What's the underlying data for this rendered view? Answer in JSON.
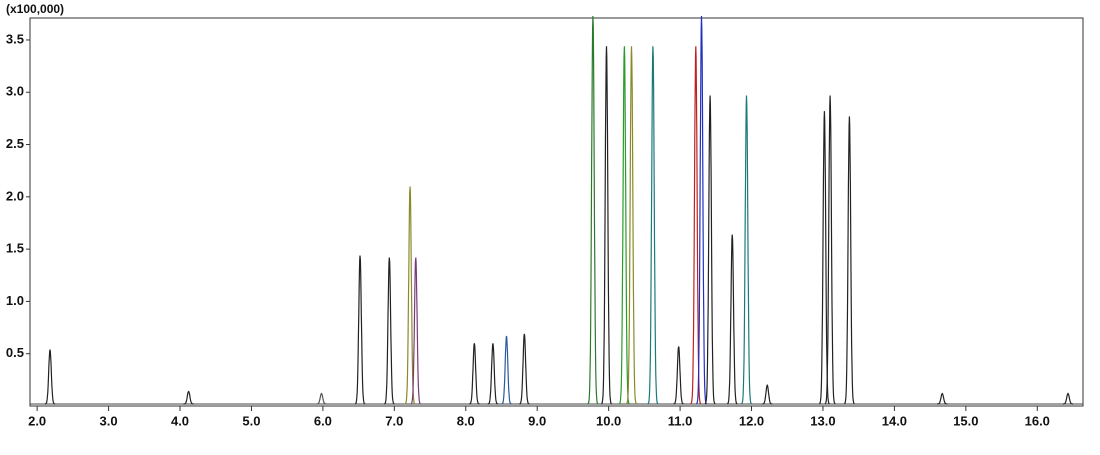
{
  "chart_data": {
    "type": "chromatogram",
    "y_label": "(x100,000)",
    "x": [
      2.18,
      4.12,
      5.98,
      6.52,
      6.93,
      7.22,
      7.3,
      8.12,
      8.38,
      8.57,
      8.82,
      9.78,
      9.97,
      10.22,
      10.32,
      10.62,
      10.98,
      11.22,
      11.3,
      11.42,
      11.73,
      11.93,
      12.22,
      13.02,
      13.1,
      13.37,
      14.67,
      16.43
    ],
    "values": [
      0.52,
      0.12,
      0.1,
      1.42,
      1.4,
      2.08,
      1.4,
      0.58,
      0.58,
      0.65,
      0.67,
      3.71,
      3.42,
      3.42,
      3.42,
      3.42,
      0.55,
      3.42,
      3.71,
      2.95,
      1.62,
      2.95,
      0.18,
      2.8,
      2.95,
      2.75,
      0.1,
      0.1
    ],
    "colors": [
      "#222",
      "#222",
      "#555",
      "#222",
      "#222",
      "#8a8a2a",
      "#7a3a7a",
      "#222",
      "#222",
      "#2a5a9a",
      "#222",
      "#2a7a2a",
      "#222",
      "#2a9a2a",
      "#8a8a2a",
      "#1a7a7a",
      "#222",
      "#c02020",
      "#2030c0",
      "#222",
      "#222",
      "#1a7a7a",
      "#222",
      "#222",
      "#222",
      "#222",
      "#222",
      "#222"
    ],
    "xlim": [
      1.9,
      16.64
    ],
    "ylim": [
      0,
      3.71
    ],
    "xticks": [
      {
        "value": 2,
        "label": "2.0"
      },
      {
        "value": 3,
        "label": "3.0"
      },
      {
        "value": 4,
        "label": "4.0"
      },
      {
        "value": 5,
        "label": "5.0"
      },
      {
        "value": 6,
        "label": "6.0"
      },
      {
        "value": 7,
        "label": "7.0"
      },
      {
        "value": 8,
        "label": "8.0"
      },
      {
        "value": 9,
        "label": "9.0"
      },
      {
        "value": 10,
        "label": "10.0"
      },
      {
        "value": 11,
        "label": "11.0"
      },
      {
        "value": 12,
        "label": "12.0"
      },
      {
        "value": 13,
        "label": "13.0"
      },
      {
        "value": 14,
        "label": "14.0"
      },
      {
        "value": 15,
        "label": "15.0"
      },
      {
        "value": 16,
        "label": "16.0"
      }
    ],
    "yticks": [
      0.5,
      {
        "value": 1,
        "label": "1.0"
      },
      1.5,
      {
        "value": 2,
        "label": "2.0"
      },
      2.5,
      {
        "value": 3,
        "label": "3.0"
      },
      3.5
    ]
  }
}
